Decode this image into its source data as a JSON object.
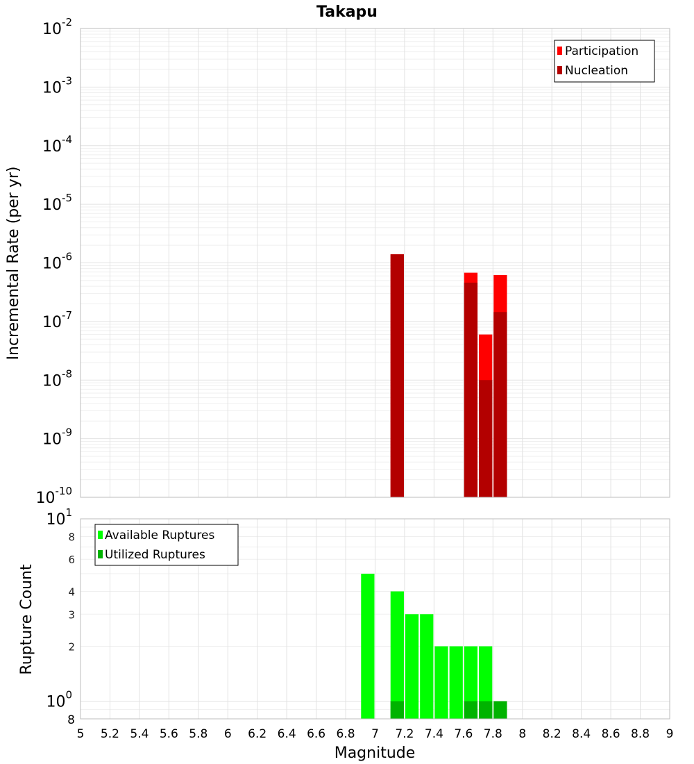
{
  "chart_data": [
    {
      "type": "bar",
      "title": "Takapu",
      "xlabel": "",
      "ylabel": "Incremental Rate (per yr)",
      "yscale": "log",
      "ylim": [
        1e-10,
        0.01
      ],
      "xlim": [
        5,
        9
      ],
      "grid": true,
      "legend": "top-right",
      "y_ticks": [
        {
          "base": "10",
          "exp": "-2"
        },
        {
          "base": "10",
          "exp": "-3"
        },
        {
          "base": "10",
          "exp": "-4"
        },
        {
          "base": "10",
          "exp": "-5"
        },
        {
          "base": "10",
          "exp": "-6"
        },
        {
          "base": "10",
          "exp": "-7"
        },
        {
          "base": "10",
          "exp": "-8"
        },
        {
          "base": "10",
          "exp": "-9"
        },
        {
          "base": "10",
          "exp": "-10"
        }
      ],
      "series": [
        {
          "name": "Participation",
          "color": "#ff0000",
          "points": [
            {
              "x": 7.15,
              "y": 1.4e-06
            },
            {
              "x": 7.65,
              "y": 6.8e-07
            },
            {
              "x": 7.75,
              "y": 6e-08
            },
            {
              "x": 7.85,
              "y": 6.2e-07
            }
          ]
        },
        {
          "name": "Nucleation",
          "color": "#b30000",
          "points": [
            {
              "x": 7.15,
              "y": 1.4e-06
            },
            {
              "x": 7.65,
              "y": 4.6e-07
            },
            {
              "x": 7.75,
              "y": 1e-08
            },
            {
              "x": 7.85,
              "y": 1.45e-07
            }
          ]
        }
      ]
    },
    {
      "type": "bar",
      "title": "",
      "xlabel": "Magnitude",
      "ylabel": "Rupture Count",
      "yscale": "log",
      "ylim": [
        0.8,
        10
      ],
      "xlim": [
        5,
        9
      ],
      "grid": true,
      "legend": "top-left",
      "x_ticks": [
        "5",
        "5.2",
        "5.4",
        "5.6",
        "5.8",
        "6",
        "6.2",
        "6.4",
        "6.6",
        "6.8",
        "7",
        "7.2",
        "7.4",
        "7.6",
        "7.8",
        "8",
        "8.2",
        "8.4",
        "8.6",
        "8.8",
        "9"
      ],
      "y_ticks_major": [
        {
          "value": 10,
          "base": "10",
          "exp": "1"
        },
        {
          "value": 1,
          "base": "10",
          "exp": "0"
        }
      ],
      "y_ticks_minor": [
        {
          "value": 8,
          "label": "8"
        },
        {
          "value": 6,
          "label": "6"
        },
        {
          "value": 4,
          "label": "4"
        },
        {
          "value": 3,
          "label": "3"
        },
        {
          "value": 2,
          "label": "2"
        }
      ],
      "y_bottom_label": {
        "value": 0.8,
        "label": "8"
      },
      "series": [
        {
          "name": "Available Ruptures",
          "color": "#00ff00",
          "points": [
            {
              "x": 6.95,
              "y": 5
            },
            {
              "x": 7.15,
              "y": 4
            },
            {
              "x": 7.25,
              "y": 3
            },
            {
              "x": 7.35,
              "y": 3
            },
            {
              "x": 7.45,
              "y": 2
            },
            {
              "x": 7.55,
              "y": 2
            },
            {
              "x": 7.65,
              "y": 2
            },
            {
              "x": 7.75,
              "y": 2
            }
          ]
        },
        {
          "name": "Utilized Ruptures",
          "color": "#00b300",
          "points": [
            {
              "x": 7.15,
              "y": 1
            },
            {
              "x": 7.65,
              "y": 1
            },
            {
              "x": 7.75,
              "y": 1
            },
            {
              "x": 7.85,
              "y": 1
            }
          ]
        }
      ]
    }
  ]
}
